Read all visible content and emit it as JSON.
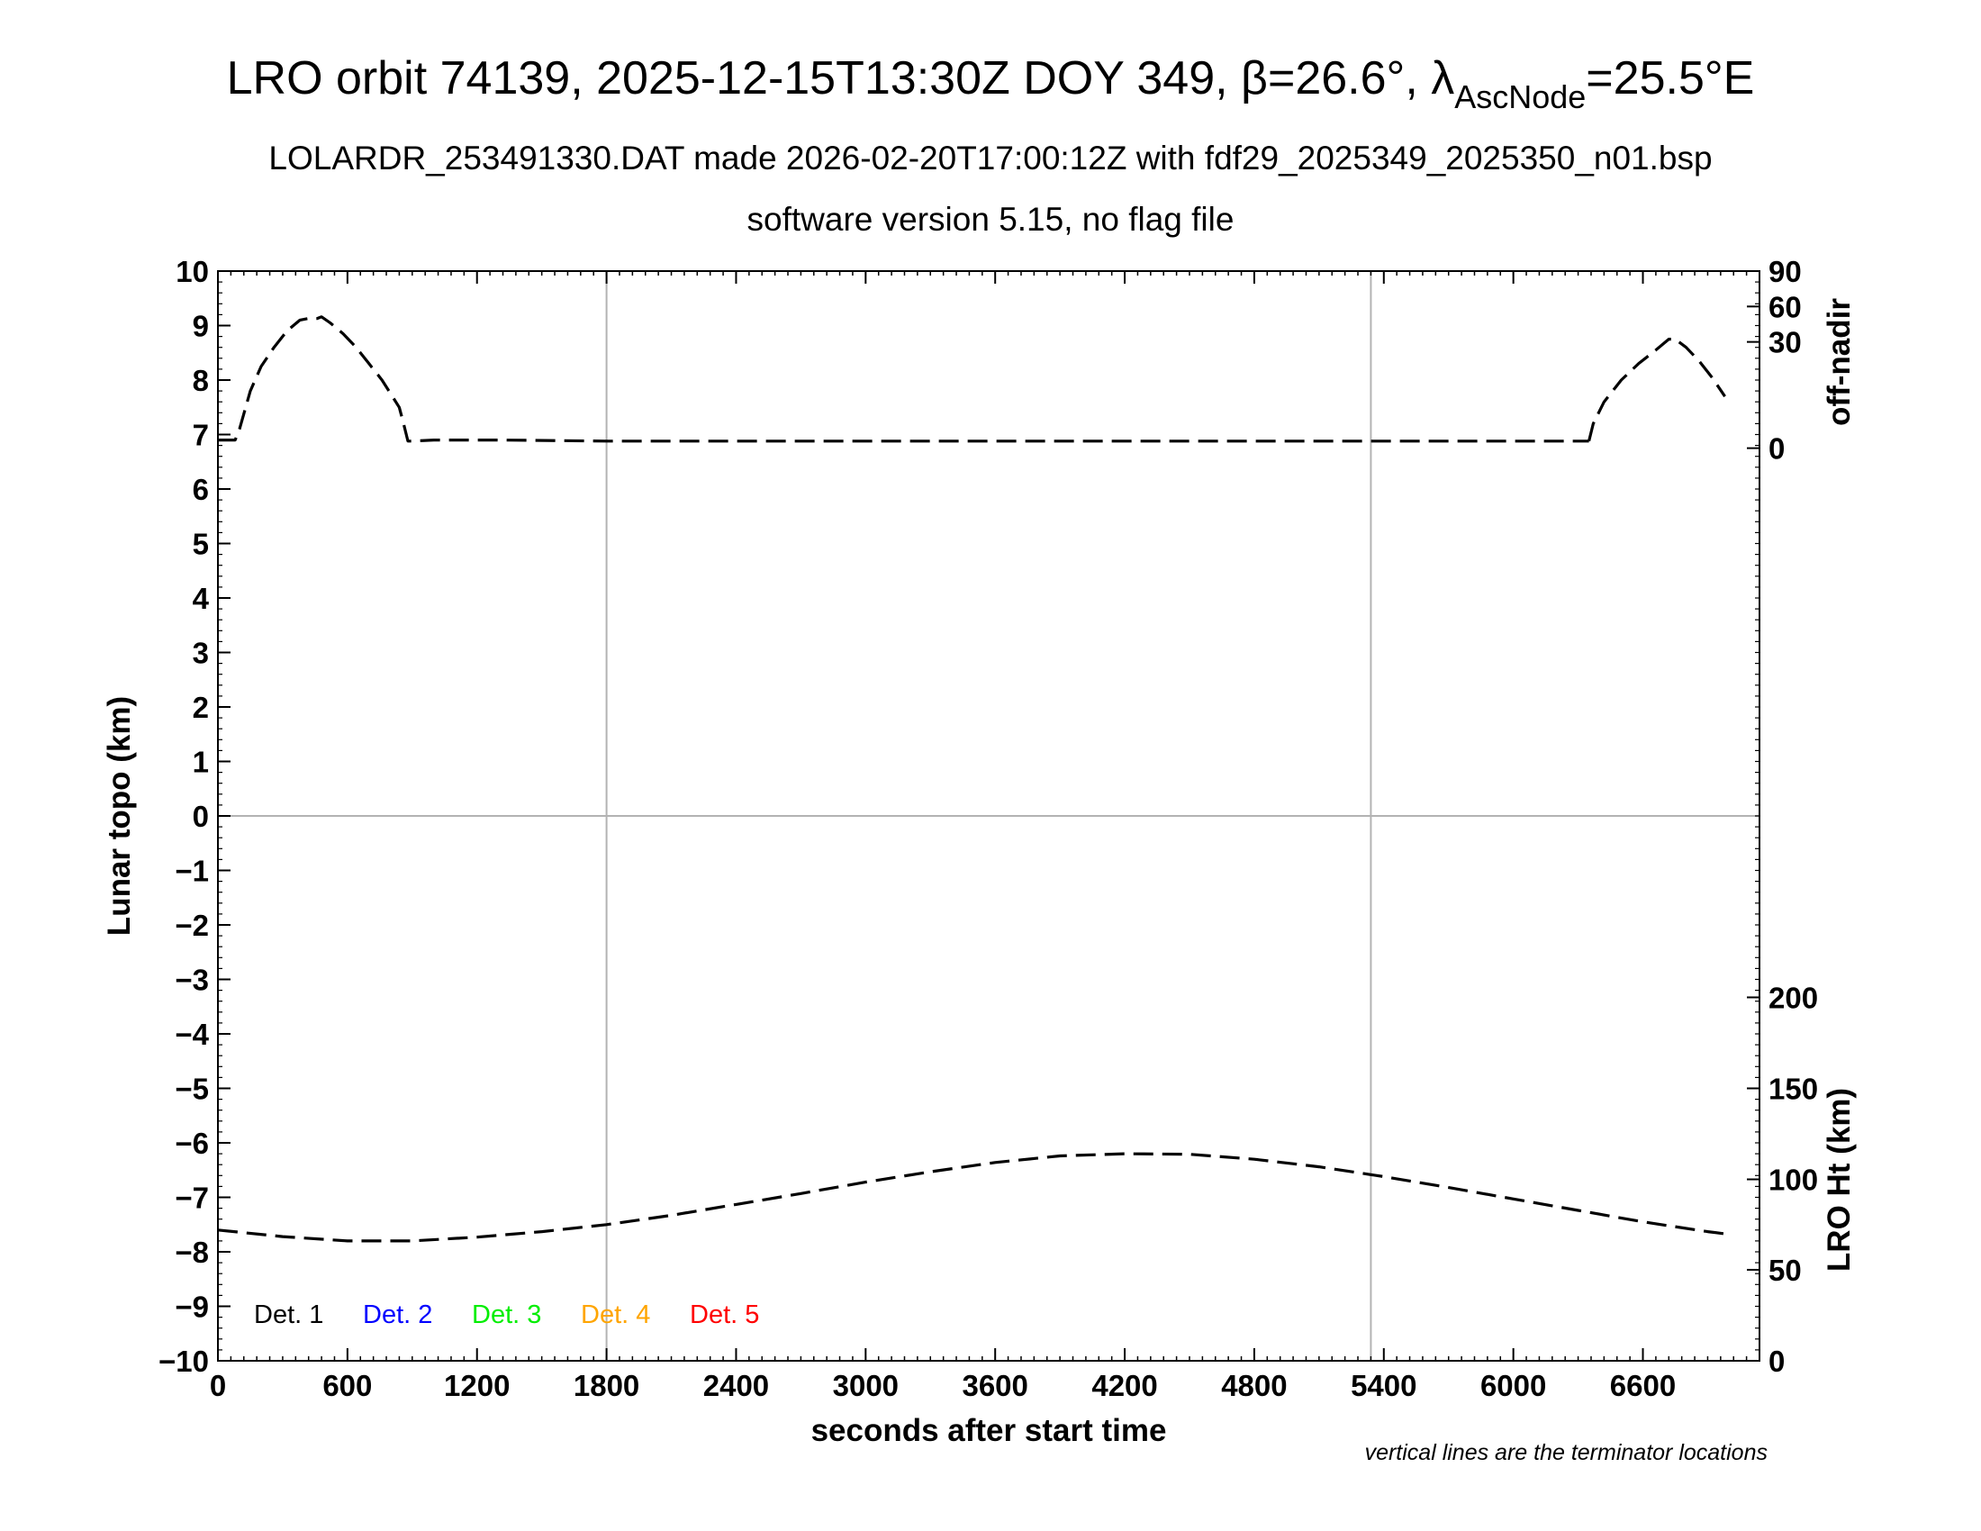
{
  "header": {
    "title_main": "LRO orbit 74139, 2025-12-15T13:30Z DOY 349, β=26.6°, λ",
    "title_sub": "AscNode",
    "title_tail": "=25.5°E",
    "subtitle_1": "LOLARDR_253491330.DAT made 2026-02-20T17:00:12Z with fdf29_2025349_2025350_n01.bsp",
    "subtitle_2": "software version 5.15, no flag file"
  },
  "footer_note": "vertical lines are the terminator locations",
  "chart_data": {
    "type": "line",
    "xlabel": "seconds after start time",
    "ylabel": "Lunar topo (km)",
    "xlim": [
      0,
      7140
    ],
    "ylim": [
      -10,
      10
    ],
    "x_ticks": [
      "0",
      "600",
      "1200",
      "1800",
      "2400",
      "3000",
      "3600",
      "4200",
      "4800",
      "5400",
      "6000",
      "6600"
    ],
    "y_ticks": [
      "−10",
      "−9",
      "−8",
      "−7",
      "−6",
      "−5",
      "−4",
      "−3",
      "−2",
      "−1",
      "0",
      "1",
      "2",
      "3",
      "4",
      "5",
      "6",
      "7",
      "8",
      "9",
      "10"
    ],
    "right_axis_top": {
      "label": "off-nadir",
      "ticks": [
        "0",
        "30",
        "60",
        "90"
      ],
      "tick_topo": [
        6.75,
        8.7,
        9.35,
        10
      ]
    },
    "right_axis_bottom": {
      "label": "LRO Ht (km)",
      "ticks": [
        "0",
        "50",
        "100",
        "150",
        "200"
      ],
      "tick_topo": [
        -10,
        -8.33,
        -6.67,
        -5.0,
        -3.33
      ]
    },
    "terminator_lines_x": [
      1800,
      5340
    ],
    "zero_line_y": 0,
    "grid": false,
    "legend_position": "bottom-left",
    "legend": [
      {
        "label": "Det. 1",
        "color": "#000000"
      },
      {
        "label": "Det. 2",
        "color": "#0000ff"
      },
      {
        "label": "Det. 3",
        "color": "#00ee00"
      },
      {
        "label": "Det. 4",
        "color": "#ffa500"
      },
      {
        "label": "Det. 5",
        "color": "#ff0000"
      }
    ],
    "series": [
      {
        "dash": true,
        "color": "#000000",
        "x": [
          0,
          60,
          80,
          100,
          150,
          200,
          260,
          320,
          380,
          420,
          460,
          480,
          520,
          580,
          640,
          700,
          760,
          800,
          840,
          860,
          880,
          900,
          1000,
          1100,
          1300,
          1800,
          2400,
          3000,
          3600,
          4200,
          4800,
          5400,
          6000,
          6300,
          6350
        ],
        "y": [
          6.9,
          6.9,
          6.9,
          7.1,
          7.8,
          8.25,
          8.6,
          8.9,
          9.1,
          9.13,
          9.13,
          9.16,
          9.05,
          8.85,
          8.6,
          8.3,
          8.0,
          7.75,
          7.5,
          7.2,
          6.88,
          6.88,
          6.9,
          6.9,
          6.9,
          6.88,
          6.88,
          6.88,
          6.88,
          6.88,
          6.88,
          6.88,
          6.88,
          6.88,
          6.88
        ]
      },
      {
        "dash": true,
        "color": "#000000",
        "x": [
          6350,
          6370,
          6420,
          6500,
          6580,
          6660,
          6720,
          6750,
          6800,
          6860,
          6920,
          6980
        ],
        "y": [
          6.88,
          7.2,
          7.6,
          8.0,
          8.3,
          8.55,
          8.75,
          8.75,
          8.6,
          8.35,
          8.05,
          7.7
        ]
      },
      {
        "dash": true,
        "color": "#000000",
        "x": [
          0,
          300,
          600,
          900,
          1200,
          1500,
          1800,
          2100,
          2400,
          2700,
          3000,
          3300,
          3600,
          3900,
          4200,
          4500,
          4800,
          5100,
          5400,
          5700,
          6000,
          6300,
          6600,
          6900,
          7000
        ],
        "y": [
          -7.6,
          -7.72,
          -7.8,
          -7.8,
          -7.73,
          -7.63,
          -7.5,
          -7.33,
          -7.13,
          -6.93,
          -6.72,
          -6.53,
          -6.36,
          -6.24,
          -6.2,
          -6.21,
          -6.3,
          -6.44,
          -6.62,
          -6.82,
          -7.03,
          -7.24,
          -7.45,
          -7.63,
          -7.68
        ]
      }
    ]
  }
}
